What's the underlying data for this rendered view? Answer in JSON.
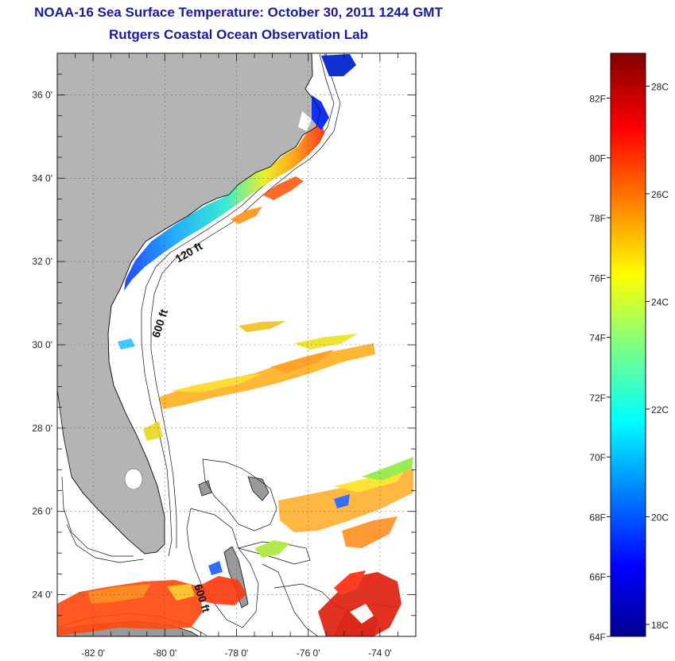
{
  "title": "NOAA-16 Sea Surface Temperature:  October 30, 2011 1244 GMT",
  "subtitle": "Rutgers Coastal Ocean Observation Lab",
  "map": {
    "lat_range": [
      23,
      37
    ],
    "lon_range": [
      -83,
      -73
    ],
    "lat_ticks": [
      {
        "value": 36,
        "label": "36 0'"
      },
      {
        "value": 34,
        "label": "34 0'"
      },
      {
        "value": 32,
        "label": "32 0'"
      },
      {
        "value": 30,
        "label": "30 0'"
      },
      {
        "value": 28,
        "label": "28 0'"
      },
      {
        "value": 26,
        "label": "26 0'"
      },
      {
        "value": 24,
        "label": "24 0'"
      }
    ],
    "lon_ticks": [
      {
        "value": -82,
        "label": "-82 0'"
      },
      {
        "value": -80,
        "label": "-80 0'"
      },
      {
        "value": -78,
        "label": "-78 0'"
      },
      {
        "value": -76,
        "label": "-76 0'"
      },
      {
        "value": -74,
        "label": "-74 0'"
      }
    ],
    "contour_labels": {
      "c120_north": "120 ft",
      "c600_north": "600 ft",
      "c600_south": "600 ft"
    },
    "land_color": "#b4b4b4",
    "grid": true
  },
  "colorbar": {
    "range_f": [
      64,
      83.5
    ],
    "fahrenheit_ticks": [
      {
        "value": 82,
        "label": "82F"
      },
      {
        "value": 80,
        "label": "80F"
      },
      {
        "value": 78,
        "label": "78F"
      },
      {
        "value": 76,
        "label": "76F"
      },
      {
        "value": 74,
        "label": "74F"
      },
      {
        "value": 72,
        "label": "72F"
      },
      {
        "value": 70,
        "label": "70F"
      },
      {
        "value": 68,
        "label": "68F"
      },
      {
        "value": 66,
        "label": "66F"
      },
      {
        "value": 64,
        "label": "64F"
      }
    ],
    "celsius_ticks": [
      {
        "value": 28,
        "label": "28C"
      },
      {
        "value": 26,
        "label": "26C"
      },
      {
        "value": 24,
        "label": "24C"
      },
      {
        "value": 22,
        "label": "22C"
      },
      {
        "value": 20,
        "label": "20C"
      },
      {
        "value": 18,
        "label": "18C"
      }
    ],
    "colormap": "jet"
  }
}
